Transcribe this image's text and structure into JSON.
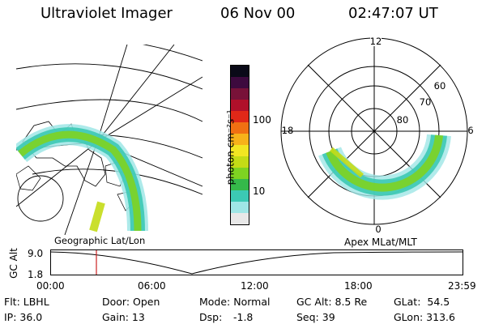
{
  "header": {
    "title": "Ultraviolet Imager",
    "date": "06 Nov 00",
    "time": "02:47:07 UT"
  },
  "colorbar": {
    "unit_label": "photon cm⁻²s⁻¹",
    "ticks": [
      "100",
      "10"
    ],
    "colors": [
      "#e8e8e8",
      "#9fe6e6",
      "#3cc9b4",
      "#35b94a",
      "#7ed321",
      "#c4dc16",
      "#f2e622",
      "#f7b21a",
      "#f07012",
      "#e02818",
      "#b0102a",
      "#781238",
      "#3d0a3e",
      "#0a0a18"
    ]
  },
  "geo_map": {
    "caption": "Geographic Lat/Lon"
  },
  "polar_map": {
    "caption": "Apex MLat/MLT",
    "mlt_labels": {
      "top": "12",
      "left": "18",
      "right": "6",
      "bottom": "0"
    },
    "lat_labels": [
      "60",
      "70",
      "80"
    ]
  },
  "altitude_plot": {
    "ylabel": "GC Alt",
    "yticks": [
      "9.0",
      "1.8"
    ],
    "xticks": [
      "00:00",
      "06:00",
      "12:00",
      "18:00",
      "23:59"
    ],
    "cursor_color": "#cc2020"
  },
  "info": {
    "flt": "Flt: LBHL",
    "ip": "IP: 36.0",
    "door": "Door: Open",
    "gain": "Gain: 13",
    "mode": "Mode: Normal",
    "dsp_label": "Dsp:",
    "dsp_value": "-1.8",
    "gc_alt": "GC Alt: 8.5 Re",
    "seq": "Seq: 39",
    "glat": "GLat:  54.5",
    "glon": "GLon: 313.6"
  }
}
